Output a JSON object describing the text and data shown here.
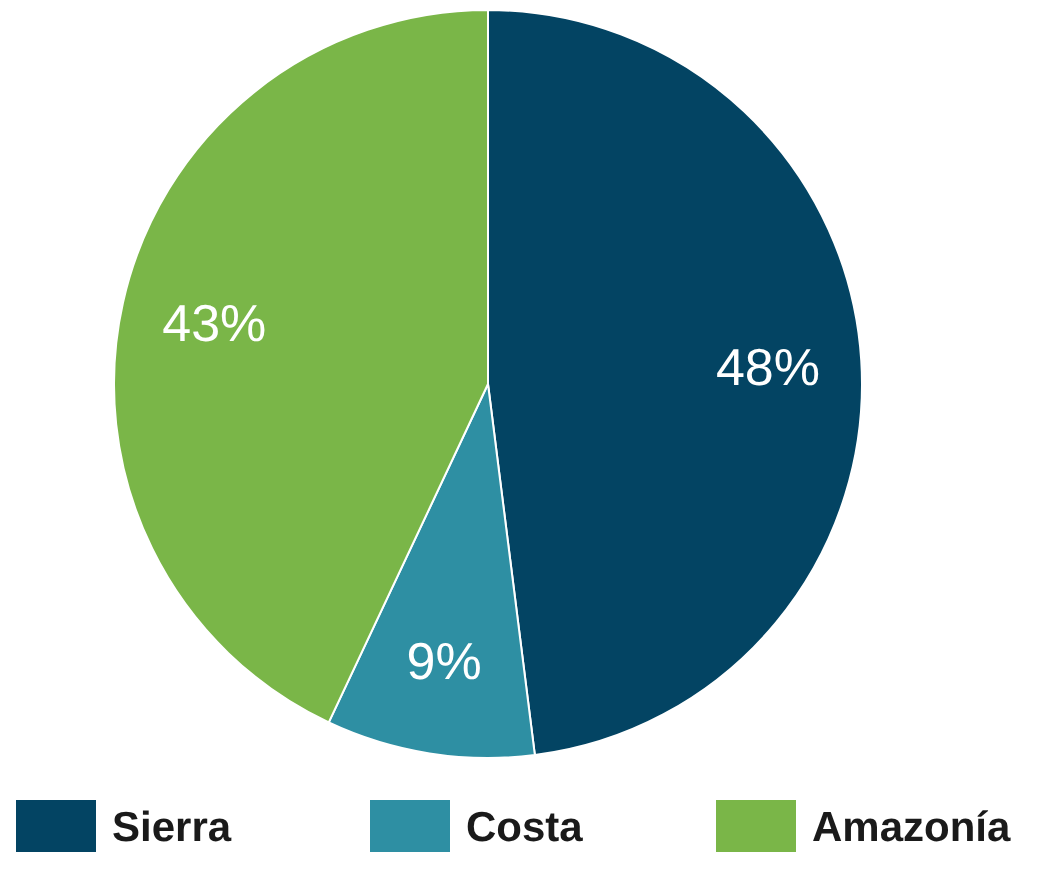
{
  "chart_data": {
    "type": "pie",
    "categories": [
      "Sierra",
      "Costa",
      "Amazonía"
    ],
    "values": [
      48,
      9,
      43
    ],
    "colors": [
      "#034463",
      "#2e8fa3",
      "#7ab648"
    ],
    "value_labels": [
      "48%",
      "9%",
      "43%"
    ],
    "legend": "bottom"
  }
}
